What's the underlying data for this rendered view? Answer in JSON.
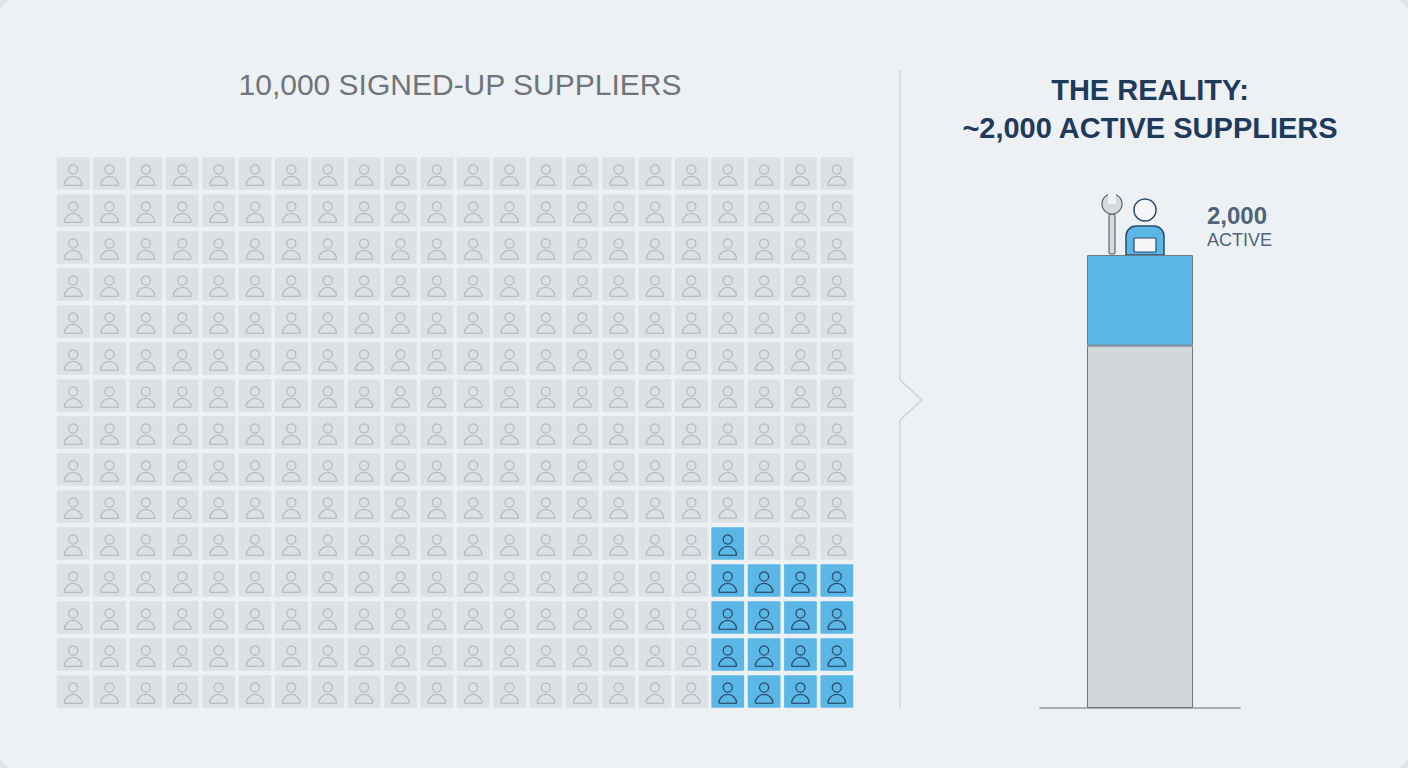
{
  "chart_data": [
    {
      "type": "waffle",
      "title": "10,000 SIGNED-UP SUPPLIERS",
      "rows": 15,
      "columns": 22,
      "highlighted": 17,
      "color": "#5bb7e5"
    },
    {
      "type": "bar",
      "stacked": true,
      "title": [
        "THE REALITY:",
        "~2,000 ACTIVE SUPPLIERS"
      ],
      "categories": [
        null
      ],
      "series": [
        {
          "values": [
            8000
          ],
          "color": "#d3d7db"
        },
        {
          "values": [
            2000
          ],
          "color": "#5bb7e5",
          "value_labels": [
            "2,000"
          ],
          "data_labels": true
        }
      ],
      "annotation": "ACTIVE",
      "ylim": [
        0,
        10000
      ],
      "tick_labels": false
    }
  ]
}
